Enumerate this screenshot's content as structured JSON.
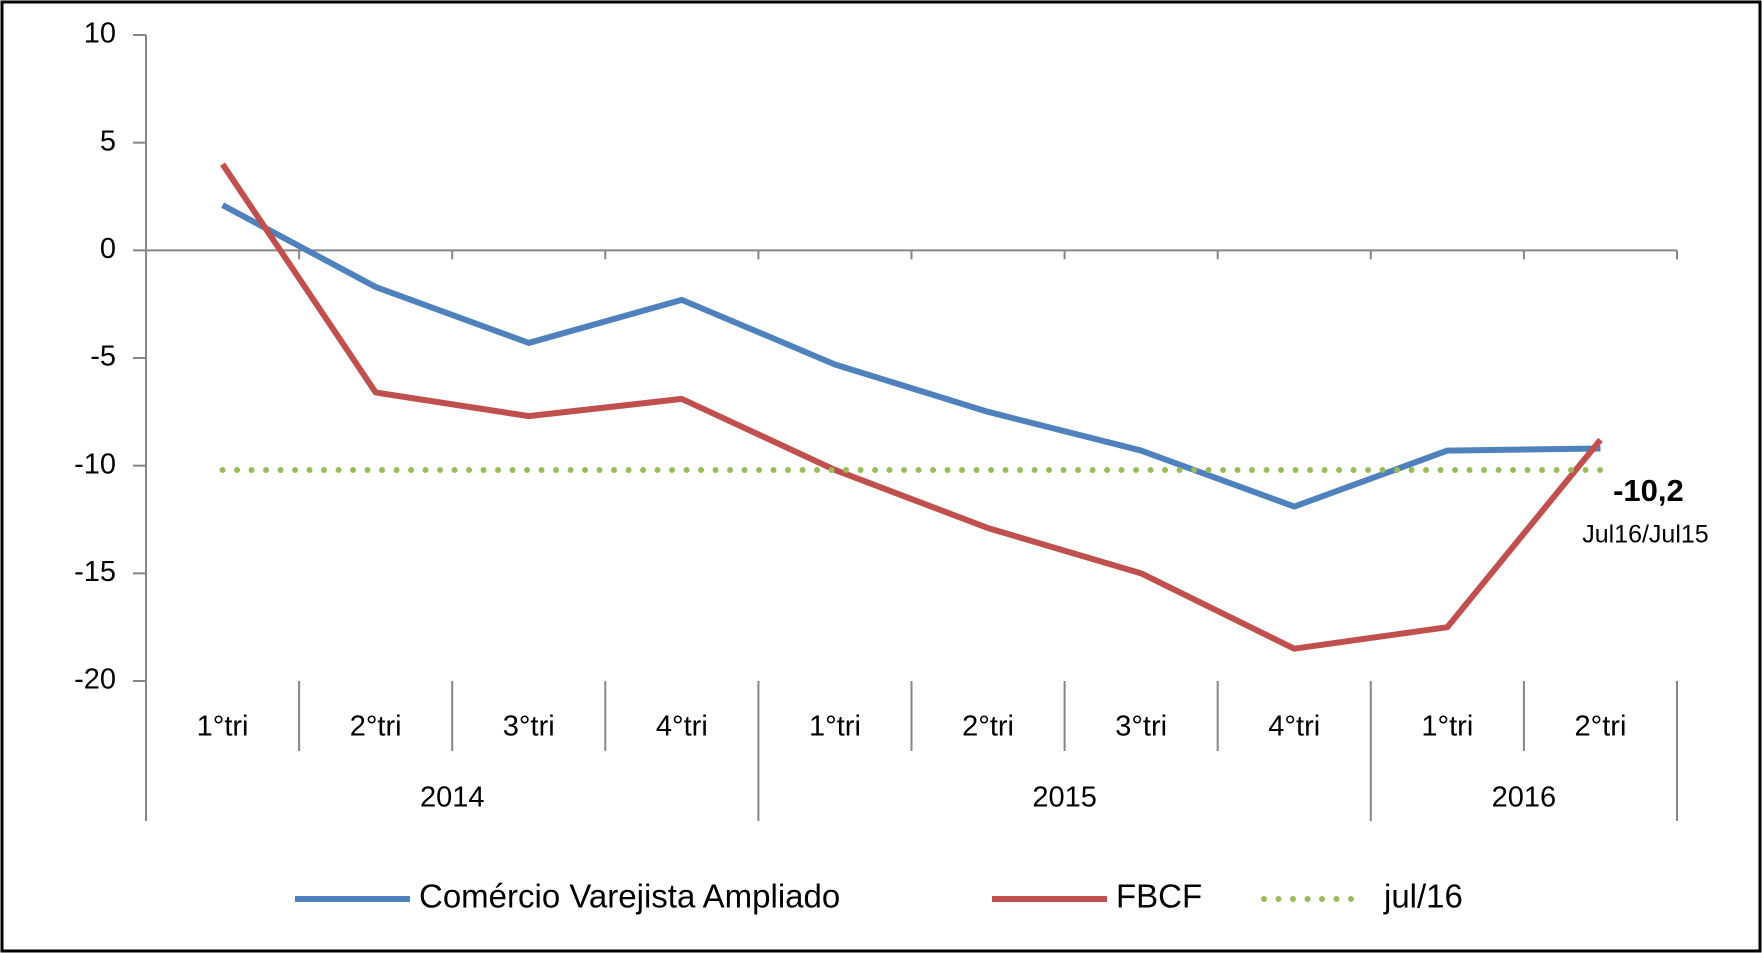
{
  "chart_data": {
    "type": "line",
    "category_groups": [
      {
        "name": "2014",
        "categories": [
          "1°tri",
          "2°tri",
          "3°tri",
          "4°tri"
        ]
      },
      {
        "name": "2015",
        "categories": [
          "1°tri",
          "2°tri",
          "3°tri",
          "4°tri"
        ]
      },
      {
        "name": "2016",
        "categories": [
          "1°tri",
          "2°tri"
        ]
      }
    ],
    "series": [
      {
        "name": "Comércio Varejista Ampliado",
        "color": "#4f81bd",
        "style": "solid",
        "values": [
          2.1,
          -1.7,
          -4.3,
          -2.3,
          -5.3,
          -7.5,
          -9.3,
          -11.9,
          -9.3,
          -9.2
        ]
      },
      {
        "name": "FBCF",
        "color": "#c0504d",
        "style": "solid",
        "values": [
          4.0,
          -6.6,
          -7.7,
          -6.9,
          -10.2,
          -12.9,
          -15.0,
          -18.5,
          -17.5,
          -8.8
        ]
      },
      {
        "name": "jul/16",
        "color": "#9bbb59",
        "style": "dotted",
        "values": [
          -10.2,
          -10.2,
          -10.2,
          -10.2,
          -10.2,
          -10.2,
          -10.2,
          -10.2,
          -10.2,
          -10.2
        ],
        "value_labels": [
          null,
          null,
          null,
          null,
          null,
          null,
          null,
          null,
          null,
          "-10,2"
        ]
      }
    ],
    "annotation": "Jul16/Jul15",
    "ylim": [
      -20,
      10
    ],
    "yticks": [
      -20,
      -15,
      -10,
      -5,
      0,
      5,
      10
    ],
    "legend": "bottom"
  }
}
